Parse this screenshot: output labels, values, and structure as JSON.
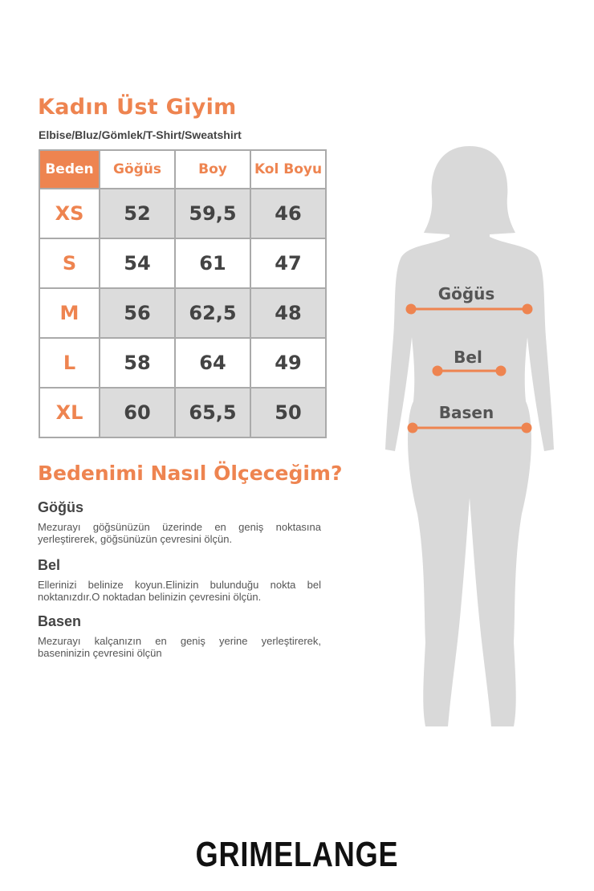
{
  "title": "Kadın Üst Giyim",
  "subtitle": "Elbise/Bluz/Gömlek/T-Shirt/Sweatshirt",
  "table": {
    "headers": [
      "Beden",
      "Göğüs",
      "Boy",
      "Kol Boyu"
    ],
    "rows": [
      [
        "XS",
        "52",
        "59,5",
        "46"
      ],
      [
        "S",
        "54",
        "61",
        "47"
      ],
      [
        "M",
        "56",
        "62,5",
        "48"
      ],
      [
        "L",
        "58",
        "64",
        "49"
      ],
      [
        "XL",
        "60",
        "65,5",
        "50"
      ]
    ]
  },
  "howto": {
    "title": "Bedenimi Nasıl Ölçeceğim?",
    "sections": [
      {
        "title": "Göğüs",
        "text": "Mezurayı göğsünüzün üzerinde en geniş noktasına yerleştirerek, göğsünüzün çevresini ölçün."
      },
      {
        "title": "Bel",
        "text": "Ellerinizi belinize koyun.Elinizin bulunduğu nokta bel noktanızdır.O noktadan belinizin çevresini ölçün."
      },
      {
        "title": "Basen",
        "text": "Mezurayı kalçanızın en geniş yerine yerleştirerek, baseninizin çevresini ölçün"
      }
    ]
  },
  "figure": {
    "labels": [
      "Göğüs",
      "Bel",
      "Basen"
    ]
  },
  "brand": "GRIMELANGE",
  "colors": {
    "accent": "#ee8450",
    "silhouette": "#d9d9d9",
    "shade": "#dcdcdc"
  }
}
